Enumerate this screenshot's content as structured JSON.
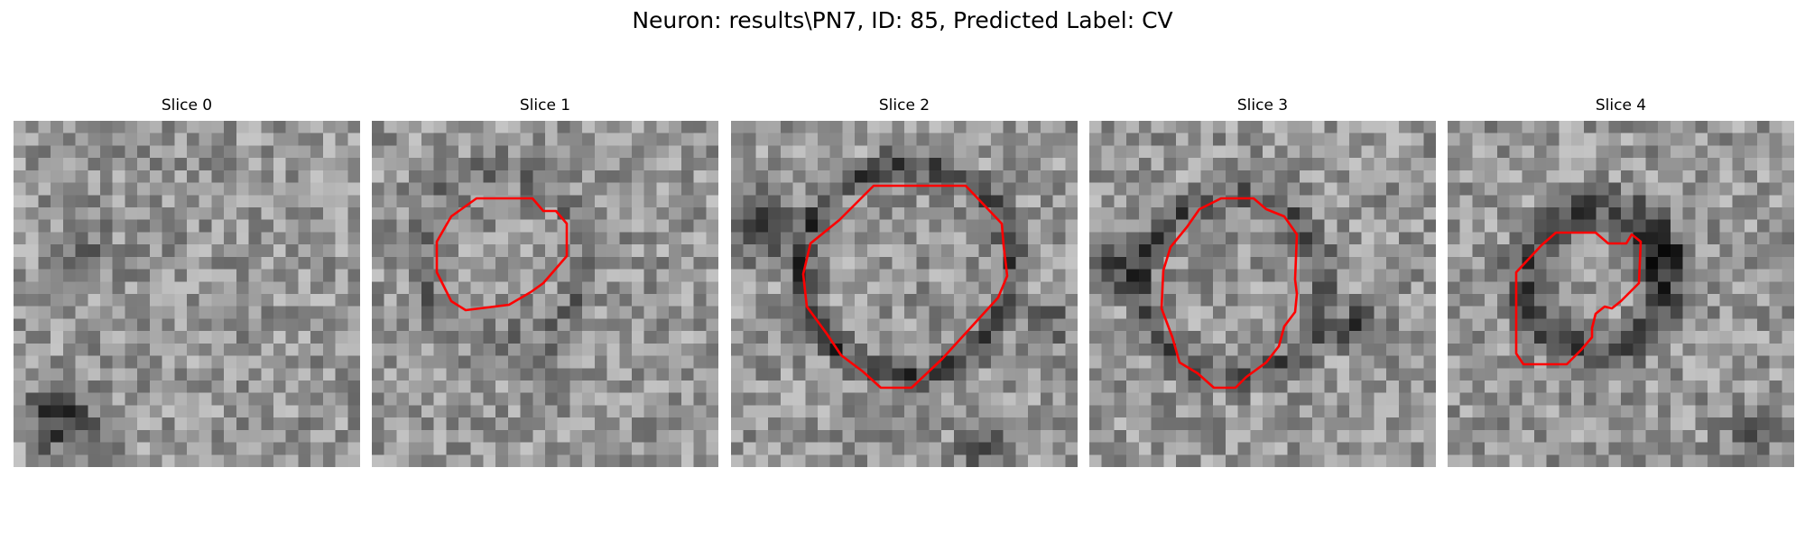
{
  "figure": {
    "title": "Neuron: results\\PN7, ID: 85, Predicted Label: CV",
    "contour_color": "#ff0000",
    "colormap": "gray"
  },
  "panels": [
    {
      "title": "Slice 0",
      "has_contour": false
    },
    {
      "title": "Slice 1",
      "has_contour": true
    },
    {
      "title": "Slice 2",
      "has_contour": true
    },
    {
      "title": "Slice 3",
      "has_contour": true
    },
    {
      "title": "Slice 4",
      "has_contour": true
    }
  ]
}
